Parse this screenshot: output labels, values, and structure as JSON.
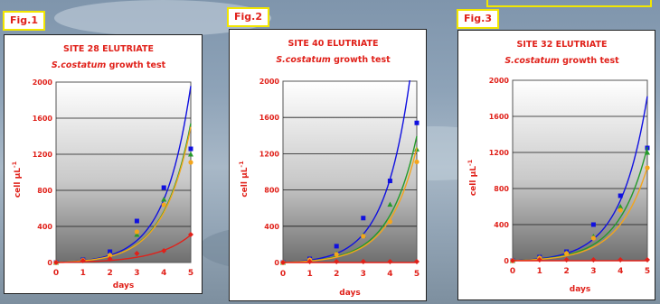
{
  "figures": [
    {
      "label": "Fig.1"
    },
    {
      "label": "Fig.2"
    },
    {
      "label": "Fig.3"
    }
  ],
  "colors": {
    "blue": "#1010e0",
    "green": "#249a2a",
    "orange": "#f3a51c",
    "red": "#e0211a",
    "axis_text": "#e0211a"
  },
  "chart_data": [
    {
      "type": "scatter",
      "title": "SITE 28 ELUTRIATE",
      "subtitle_species": "S.costatum",
      "subtitle_rest": " growth test",
      "xlabel": "days",
      "ylabel": "cell µL",
      "ylabel_sup": "-1",
      "xlim": [
        0,
        5
      ],
      "ylim": [
        0,
        2000
      ],
      "xticks": [
        0,
        1,
        2,
        3,
        4,
        5
      ],
      "yticks": [
        0,
        400,
        800,
        1200,
        1600,
        2000
      ],
      "grid": true,
      "series": [
        {
          "color": "#1010e0",
          "marker": "square",
          "points": [
            [
              0,
              0
            ],
            [
              1,
              30
            ],
            [
              2,
              120
            ],
            [
              3,
              460
            ],
            [
              4,
              830
            ],
            [
              5,
              1260
            ]
          ],
          "curve": {
            "a": 12,
            "b": 1.02
          }
        },
        {
          "color": "#249a2a",
          "marker": "triangle",
          "points": [
            [
              0,
              0
            ],
            [
              1,
              25
            ],
            [
              2,
              90
            ],
            [
              3,
              310
            ],
            [
              4,
              700
            ],
            [
              5,
              1200
            ]
          ],
          "curve": {
            "a": 11,
            "b": 0.99
          }
        },
        {
          "color": "#f3a51c",
          "marker": "circle",
          "points": [
            [
              0,
              0
            ],
            [
              1,
              25
            ],
            [
              2,
              80
            ],
            [
              3,
              340
            ],
            [
              4,
              640
            ],
            [
              5,
              1110
            ]
          ],
          "curve": {
            "a": 11,
            "b": 0.985
          }
        },
        {
          "color": "#e0211a",
          "marker": "diamond",
          "points": [
            [
              0,
              0
            ],
            [
              1,
              20
            ],
            [
              2,
              40
            ],
            [
              3,
              100
            ],
            [
              4,
              130
            ],
            [
              5,
              310
            ]
          ],
          "curve": {
            "a": 6,
            "b": 0.79
          }
        }
      ]
    },
    {
      "type": "scatter",
      "title": "SITE 40 ELUTRIATE",
      "subtitle_species": "S.costatum",
      "subtitle_rest": " growth test",
      "xlabel": "days",
      "ylabel": "cell µL",
      "ylabel_sup": "-1",
      "xlim": [
        0,
        5
      ],
      "ylim": [
        0,
        2000
      ],
      "xticks": [
        0,
        1,
        2,
        3,
        4,
        5
      ],
      "yticks": [
        0,
        400,
        800,
        1200,
        1600,
        2000
      ],
      "grid": true,
      "series": [
        {
          "color": "#1010e0",
          "marker": "square",
          "points": [
            [
              0,
              0
            ],
            [
              1,
              40
            ],
            [
              2,
              180
            ],
            [
              3,
              490
            ],
            [
              4,
              900
            ],
            [
              5,
              1540
            ]
          ],
          "curve": {
            "a": 14,
            "b": 1.05
          }
        },
        {
          "color": "#249a2a",
          "marker": "triangle",
          "points": [
            [
              0,
              0
            ],
            [
              1,
              30
            ],
            [
              2,
              100
            ],
            [
              3,
              300
            ],
            [
              4,
              640
            ],
            [
              5,
              1250
            ]
          ],
          "curve": {
            "a": 11,
            "b": 0.97
          }
        },
        {
          "color": "#f3a51c",
          "marker": "circle",
          "points": [
            [
              0,
              0
            ],
            [
              1,
              30
            ],
            [
              2,
              90
            ],
            [
              3,
              290
            ],
            [
              4,
              450
            ],
            [
              5,
              1110
            ]
          ],
          "curve": {
            "a": 10,
            "b": 0.97
          }
        },
        {
          "color": "#e0211a",
          "marker": "diamond",
          "points": [
            [
              0,
              0
            ],
            [
              1,
              10
            ],
            [
              2,
              10
            ],
            [
              3,
              10
            ],
            [
              4,
              10
            ],
            [
              5,
              10
            ]
          ],
          "curve": {
            "a": 4,
            "b": 0.0
          }
        }
      ]
    },
    {
      "type": "scatter",
      "title": "SITE 32 ELUTRIATE",
      "subtitle_species": "S.costatum",
      "subtitle_rest": " growth test",
      "xlabel": "days",
      "ylabel": "cell µL",
      "ylabel_sup": "-1",
      "xlim": [
        0,
        5
      ],
      "ylim": [
        0,
        2000
      ],
      "xticks": [
        0,
        1,
        2,
        3,
        4,
        5
      ],
      "yticks": [
        0,
        400,
        800,
        1200,
        1600,
        2000
      ],
      "grid": true,
      "series": [
        {
          "color": "#1010e0",
          "marker": "square",
          "points": [
            [
              0,
              0
            ],
            [
              1,
              40
            ],
            [
              2,
              100
            ],
            [
              3,
              400
            ],
            [
              4,
              720
            ],
            [
              5,
              1250
            ]
          ],
          "curve": {
            "a": 13,
            "b": 0.99
          }
        },
        {
          "color": "#249a2a",
          "marker": "triangle",
          "points": [
            [
              0,
              0
            ],
            [
              1,
              35
            ],
            [
              2,
              90
            ],
            [
              3,
              270
            ],
            [
              4,
              600
            ],
            [
              5,
              1200
            ]
          ],
          "curve": {
            "a": 11,
            "b": 0.95
          }
        },
        {
          "color": "#f3a51c",
          "marker": "circle",
          "points": [
            [
              0,
              0
            ],
            [
              1,
              30
            ],
            [
              2,
              80
            ],
            [
              3,
              250
            ],
            [
              4,
              560
            ],
            [
              5,
              1030
            ]
          ],
          "curve": {
            "a": 10,
            "b": 0.93
          }
        },
        {
          "color": "#e0211a",
          "marker": "diamond",
          "points": [
            [
              0,
              0
            ],
            [
              1,
              10
            ],
            [
              2,
              10
            ],
            [
              3,
              10
            ],
            [
              4,
              10
            ],
            [
              5,
              10
            ]
          ],
          "curve": {
            "a": 4,
            "b": 0.0
          }
        }
      ]
    }
  ]
}
